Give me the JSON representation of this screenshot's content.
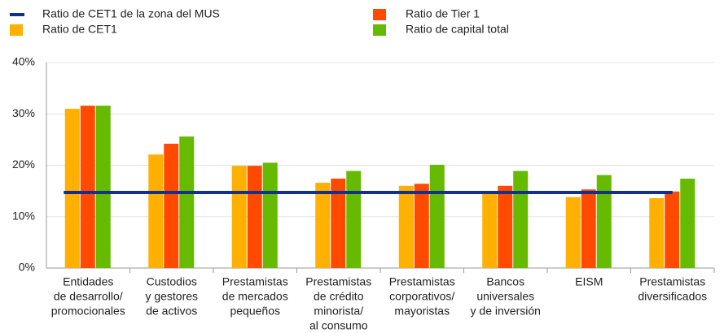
{
  "chart_data": {
    "type": "bar",
    "categories": [
      [
        "Entidades",
        "de desarrollo/",
        "promocionales"
      ],
      [
        "Custodios",
        "y gestores",
        "de activos"
      ],
      [
        "Prestamistas",
        "de mercados",
        "pequeños"
      ],
      [
        "Prestamistas",
        "de crédito",
        "minorista/",
        "al consumo"
      ],
      [
        "Prestamistas",
        "corporativos/",
        "mayoristas"
      ],
      [
        "Bancos",
        "universales",
        "y de inversión"
      ],
      [
        "EISM"
      ],
      [
        "Prestamistas",
        "diversificados"
      ]
    ],
    "series": [
      {
        "name": "Ratio de CET1",
        "color": "#ffb000",
        "values": [
          31,
          22.1,
          19.9,
          16.6,
          16,
          14.6,
          13.8,
          13.6
        ]
      },
      {
        "name": "Ratio de Tier 1",
        "color": "#ff4a00",
        "values": [
          31.6,
          24.2,
          19.9,
          17.4,
          16.4,
          16,
          15.3,
          14.9
        ]
      },
      {
        "name": "Ratio de capital total",
        "color": "#66bb00",
        "values": [
          31.6,
          25.6,
          20.5,
          18.9,
          20.1,
          18.9,
          18.1,
          17.4
        ]
      }
    ],
    "reference_line": {
      "name": "Ratio de CET1 de la zona del MUS",
      "value": 14.7,
      "color": "#13318c"
    },
    "ylim": [
      0,
      40
    ],
    "yticks": [
      {
        "value": 0,
        "label": "0%"
      },
      {
        "value": 10,
        "label": "10%"
      },
      {
        "value": 20,
        "label": "20%"
      },
      {
        "value": 30,
        "label": "30%"
      },
      {
        "value": 40,
        "label": "40%"
      }
    ],
    "grid": true
  }
}
